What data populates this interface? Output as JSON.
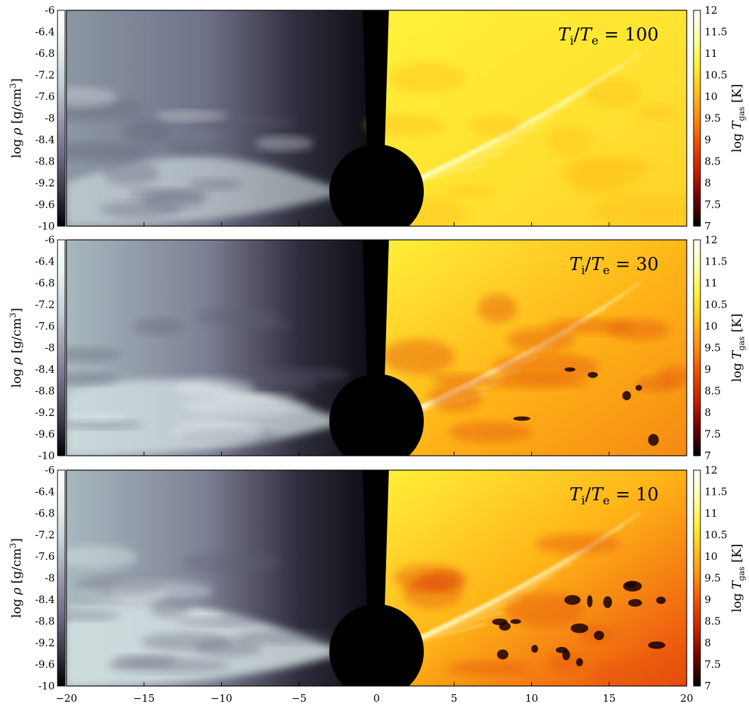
{
  "chart_data": {
    "type": "heatmap",
    "description_units": "Three stacked simulation snapshots; left half log density, right half log gas temperature",
    "x_axis": {
      "range": [
        -20,
        20
      ],
      "ticks": [
        -20,
        -15,
        -10,
        -5,
        0,
        5,
        10,
        15,
        20
      ],
      "tick_labels": [
        "−20",
        "−15",
        "−10",
        "−5",
        "0",
        "5",
        "10",
        "15",
        "20"
      ],
      "label": ""
    },
    "left_colorbar": {
      "label_math": "log ρ [g/cm³]",
      "label_parts": {
        "prefix": "log",
        "symbol": "ρ",
        "unit": "[g/cm",
        "exp": "3",
        "close": "]"
      },
      "range": [
        -10,
        -6
      ],
      "ticks": [
        -6,
        -6.4,
        -6.8,
        -7.2,
        -7.6,
        -8,
        -8.4,
        -8.8,
        -9.2,
        -9.6,
        -10
      ],
      "tick_labels": [
        "-6",
        "-6.4",
        "-6.8",
        "-7.2",
        "-7.6",
        "-8",
        "-8.4",
        "-8.8",
        "-9.2",
        "-9.6",
        "-10"
      ],
      "colormap": [
        "#000000",
        "#3a3a4c",
        "#6d6d85",
        "#9a9ab0",
        "#c5d0d5",
        "#e8f0f0",
        "#ffffff"
      ]
    },
    "right_colorbar": {
      "label_math": "log T_gas [K]",
      "label_parts": {
        "prefix": "log",
        "symbol": "T",
        "sub": "gas",
        "unit": "[K]"
      },
      "range": [
        7,
        12
      ],
      "ticks": [
        12,
        11.5,
        11,
        10.5,
        10,
        9.5,
        9,
        8.5,
        8,
        7.5,
        7
      ],
      "tick_labels": [
        "12",
        "11.5",
        "11",
        "10.5",
        "10",
        "9.5",
        "9",
        "8.5",
        "8",
        "7.5",
        "7"
      ],
      "colormap": [
        "#000000",
        "#6b0000",
        "#c01f00",
        "#ee4a00",
        "#ff8a10",
        "#ffc21a",
        "#fff23a",
        "#ffffa8",
        "#ffffff"
      ]
    },
    "panels": [
      {
        "name": "Ti/Te = 100",
        "annotation": {
          "T": "T",
          "i": "i",
          "slash": "/",
          "e": "e",
          "eq": "= 100"
        },
        "density_level": 0.45,
        "temperature_level": 0.55,
        "cold_clumps": 0
      },
      {
        "name": "Ti/Te = 30",
        "annotation": {
          "T": "T",
          "i": "i",
          "slash": "/",
          "e": "e",
          "eq": "= 30"
        },
        "density_level": 0.7,
        "temperature_level": 0.35,
        "cold_clumps": 6
      },
      {
        "name": "Ti/Te = 10",
        "annotation": {
          "T": "T",
          "i": "i",
          "slash": "/",
          "e": "e",
          "eq": "= 10"
        },
        "density_level": 0.85,
        "temperature_level": 0.2,
        "cold_clumps": 18
      }
    ],
    "black_hole": {
      "x": 0,
      "radius": 1.9
    },
    "grid": false
  }
}
